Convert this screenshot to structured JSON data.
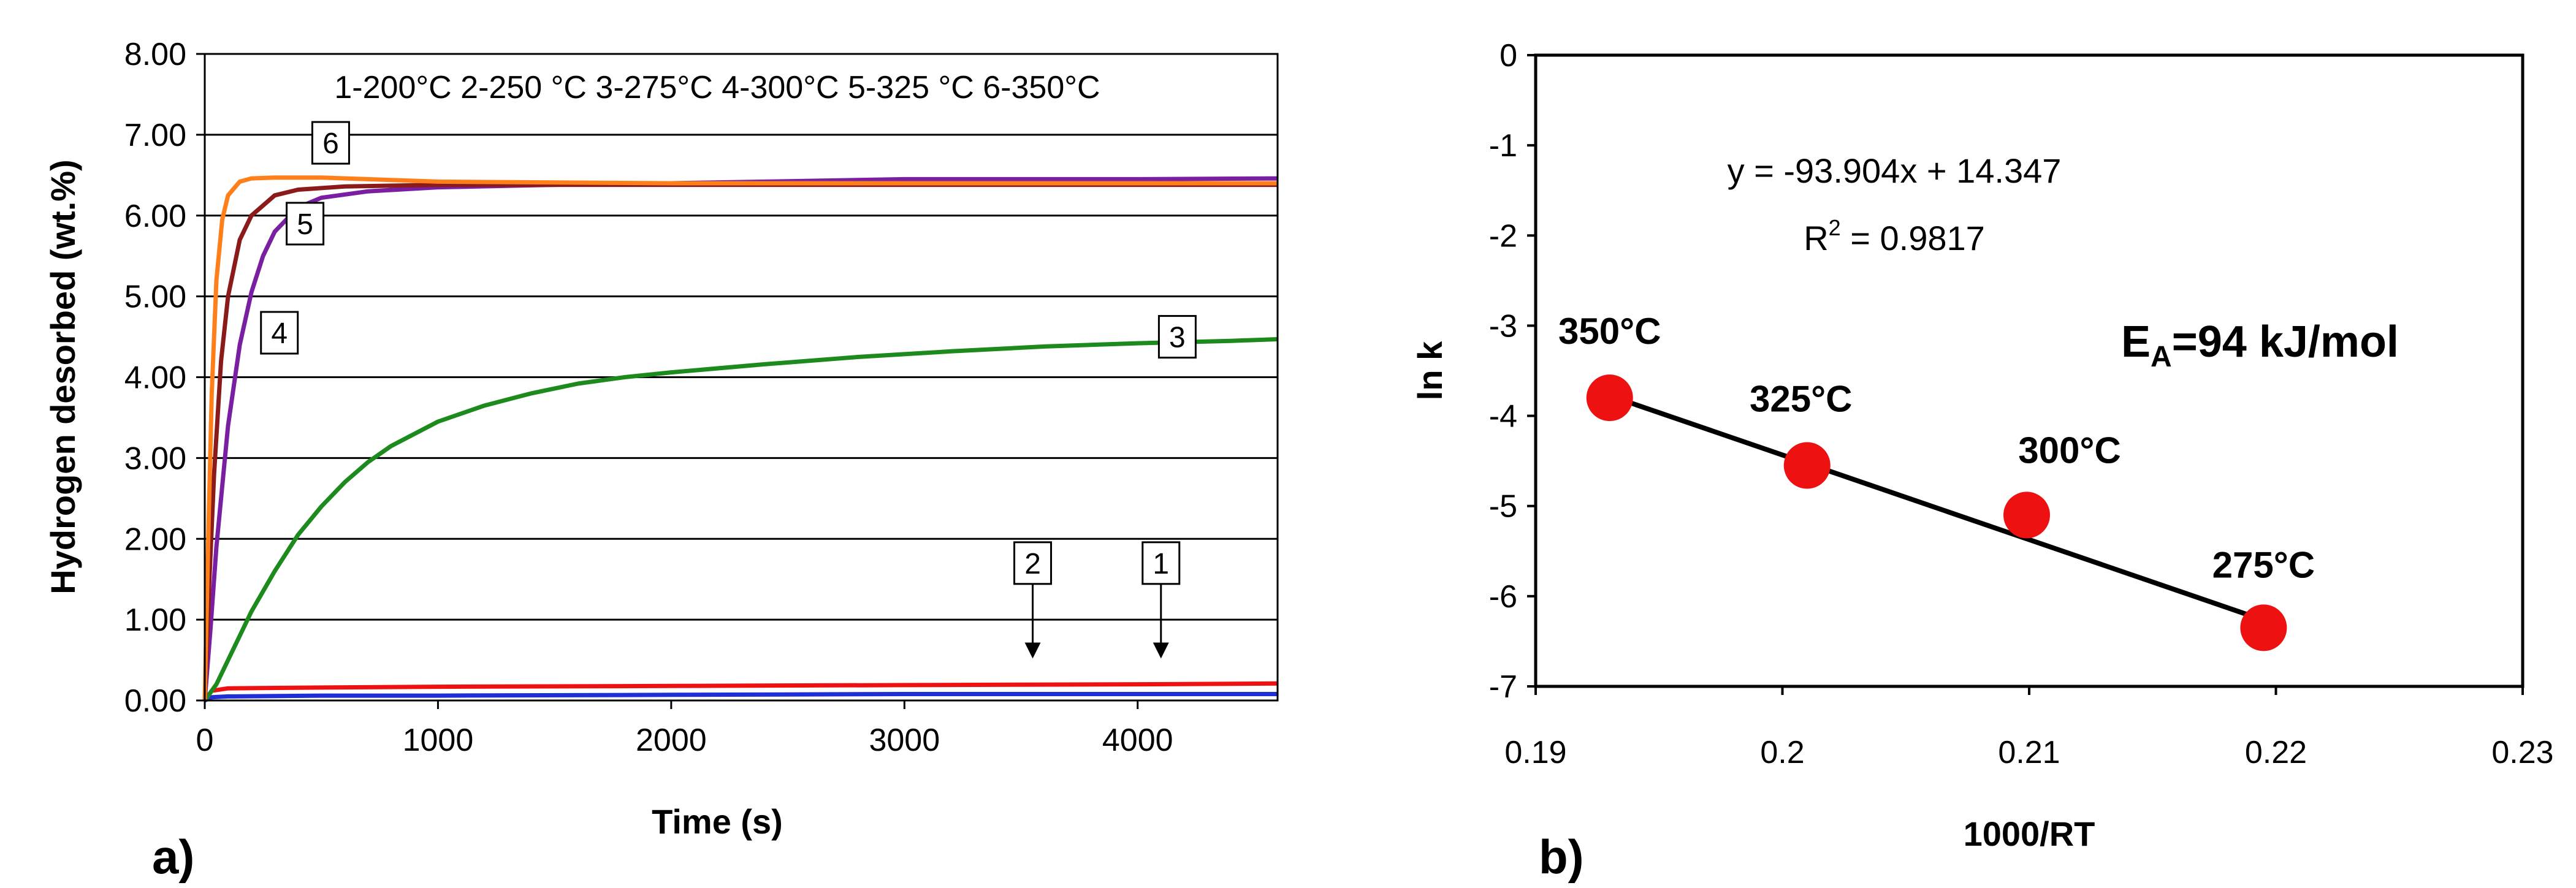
{
  "chart_data": [
    {
      "type": "line",
      "panel_label": "a)",
      "xlabel": "Time (s)",
      "ylabel": "Hydrogen desorbed (wt.%)",
      "xlim": [
        0,
        4600
      ],
      "ylim": [
        0,
        8
      ],
      "xticks": [
        0,
        1000,
        2000,
        3000,
        4000
      ],
      "xtick_labels": [
        "0",
        "1000",
        "2000",
        "3000",
        "4000"
      ],
      "yticks": [
        0,
        1,
        2,
        3,
        4,
        5,
        6,
        7,
        8
      ],
      "ytick_labels": [
        "0.00",
        "1.00",
        "2.00",
        "3.00",
        "4.00",
        "5.00",
        "6.00",
        "7.00",
        "8.00"
      ],
      "legend_text": "1-200°C  2-250 °C  3-275°C  4-300°C  5-325 °C  6-350°C",
      "grid": "horizontal",
      "series": [
        {
          "name": "1",
          "label": "200°C",
          "color": "#1f2fd6",
          "x": [
            0,
            30,
            100,
            500,
            1000,
            2000,
            3000,
            4000,
            4600
          ],
          "y": [
            0,
            0.04,
            0.05,
            0.06,
            0.06,
            0.07,
            0.08,
            0.08,
            0.08
          ]
        },
        {
          "name": "2",
          "label": "250°C",
          "color": "#ee1111",
          "x": [
            0,
            30,
            100,
            500,
            1000,
            2000,
            3000,
            4000,
            4600
          ],
          "y": [
            0,
            0.12,
            0.15,
            0.16,
            0.17,
            0.18,
            0.19,
            0.2,
            0.21
          ]
        },
        {
          "name": "3",
          "label": "275°C",
          "color": "#1d8a1d",
          "x": [
            0,
            50,
            100,
            150,
            200,
            300,
            400,
            500,
            600,
            700,
            800,
            1000,
            1200,
            1400,
            1600,
            1800,
            2000,
            2400,
            2800,
            3200,
            3600,
            4000,
            4400,
            4600
          ],
          "y": [
            0,
            0.2,
            0.5,
            0.8,
            1.1,
            1.6,
            2.05,
            2.4,
            2.7,
            2.95,
            3.15,
            3.45,
            3.65,
            3.8,
            3.92,
            4.0,
            4.06,
            4.16,
            4.25,
            4.32,
            4.38,
            4.42,
            4.45,
            4.47
          ]
        },
        {
          "name": "4",
          "label": "300°C",
          "color": "#7b1fa2",
          "x": [
            0,
            25,
            50,
            100,
            150,
            200,
            250,
            300,
            400,
            500,
            700,
            1000,
            1500,
            2000,
            3000,
            4000,
            4600
          ],
          "y": [
            0,
            0.9,
            1.9,
            3.4,
            4.4,
            5.05,
            5.5,
            5.8,
            6.1,
            6.22,
            6.3,
            6.35,
            6.38,
            6.4,
            6.45,
            6.45,
            6.46
          ]
        },
        {
          "name": "5",
          "label": "325°C",
          "color": "#8b1a1a",
          "x": [
            0,
            20,
            40,
            70,
            100,
            150,
            200,
            300,
            400,
            600,
            1000,
            2000,
            3000,
            4000,
            4600
          ],
          "y": [
            0,
            1.5,
            2.8,
            4.2,
            5.0,
            5.7,
            6.0,
            6.25,
            6.32,
            6.36,
            6.38,
            6.38,
            6.38,
            6.38,
            6.38
          ]
        },
        {
          "name": "6",
          "label": "350°C",
          "color": "#ff7f1a",
          "x": [
            0,
            15,
            30,
            50,
            75,
            100,
            150,
            200,
            300,
            500,
            1000,
            2000,
            3000,
            4000,
            4600
          ],
          "y": [
            0,
            2.0,
            3.8,
            5.2,
            5.95,
            6.25,
            6.42,
            6.46,
            6.47,
            6.47,
            6.42,
            6.4,
            6.4,
            6.4,
            6.4
          ]
        }
      ],
      "curve_labels": [
        {
          "text": "6",
          "x": 540,
          "y": 6.9
        },
        {
          "text": "5",
          "x": 430,
          "y": 5.9
        },
        {
          "text": "4",
          "x": 320,
          "y": 4.55
        },
        {
          "text": "3",
          "x": 4170,
          "y": 4.5
        },
        {
          "text": "2",
          "x": 3550,
          "y": 1.7
        },
        {
          "text": "1",
          "x": 4100,
          "y": 1.7
        }
      ]
    },
    {
      "type": "scatter",
      "panel_label": "b)",
      "xlabel": "1000/RT",
      "ylabel": "ln k",
      "xlim": [
        0.19,
        0.23
      ],
      "ylim": [
        -7,
        0
      ],
      "xticks": [
        0.19,
        0.2,
        0.21,
        0.22,
        0.23
      ],
      "xtick_labels": [
        "0.19",
        "0.2",
        "0.21",
        "0.22",
        "0.23"
      ],
      "yticks": [
        0,
        -1,
        -2,
        -3,
        -4,
        -5,
        -6,
        -7
      ],
      "ytick_labels": [
        "0",
        "-1",
        "-2",
        "-3",
        "-4",
        "-5",
        "-6",
        "-7"
      ],
      "points": [
        {
          "label": "350°C",
          "x": 0.193,
          "y": -3.8
        },
        {
          "label": "325°C",
          "x": 0.201,
          "y": -4.55
        },
        {
          "label": "300°C",
          "x": 0.2099,
          "y": -5.1
        },
        {
          "label": "275°C",
          "x": 0.2195,
          "y": -6.35
        }
      ],
      "fit": {
        "slope": -93.904,
        "intercept": 14.347,
        "r2": 0.9817,
        "equation_text": "y = -93.904x + 14.347",
        "r2_prefix": "R",
        "r2_superscript": "2",
        "r2_value_text": " = 0.9817"
      },
      "annotation": {
        "prefix": "E",
        "subscript": "A",
        "value": "=94 kJ/mol"
      },
      "point_color": "#ee1111"
    }
  ]
}
